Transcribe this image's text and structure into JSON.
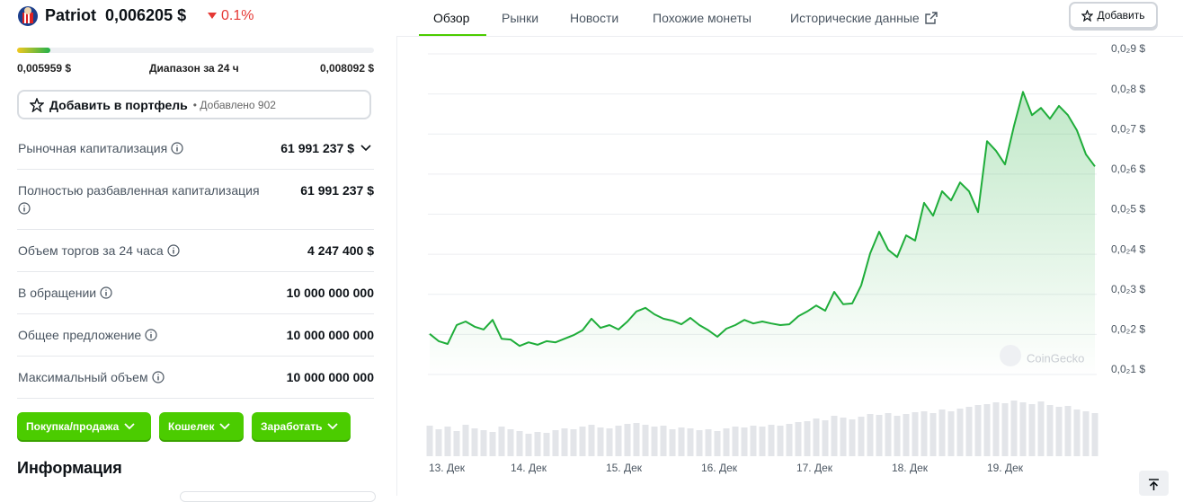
{
  "header": {
    "coin_name": "Patriot",
    "price": "0,006205 $",
    "change": "0.1%"
  },
  "range": {
    "low": "0,005959 $",
    "label": "Диапазон за 24 ч",
    "high": "0,008092 $"
  },
  "portfolio_button": {
    "label": "Добавить в портфель",
    "added": "• Добавлено 902"
  },
  "stats": [
    {
      "label": "Рыночная капитализация",
      "value": "61 991 237 $"
    },
    {
      "label": "Полностью разбавленная капитализация",
      "value": "61 991 237 $"
    },
    {
      "label": "Объем торгов за 24 часа",
      "value": "4 247 400 $"
    },
    {
      "label": "В обращении",
      "value": "10 000 000 000"
    },
    {
      "label": "Общее предложение",
      "value": "10 000 000 000"
    },
    {
      "label": "Максимальный объем",
      "value": "10 000 000 000"
    }
  ],
  "action_buttons": [
    "Покупка/продажа",
    "Кошелек",
    "Заработать"
  ],
  "section_title": "Информация",
  "tabs": [
    "Обзор",
    "Рынки",
    "Новости",
    "Похожие монеты",
    "Исторические данные"
  ],
  "add_button": "Добавить",
  "chart": {
    "type": "line",
    "color": "#1fad3a",
    "watermark": "CoinGecko",
    "values": [
      0.0019,
      0.00172,
      0.00165,
      0.00212,
      0.00221,
      0.00208,
      0.00201,
      0.00225,
      0.00178,
      0.00176,
      0.0016,
      0.00169,
      0.00163,
      0.00172,
      0.00169,
      0.00178,
      0.00187,
      0.00199,
      0.00228,
      0.00205,
      0.00212,
      0.00201,
      0.00221,
      0.00246,
      0.00255,
      0.00239,
      0.00228,
      0.00223,
      0.00214,
      0.0023,
      0.00212,
      0.00199,
      0.00183,
      0.00203,
      0.00212,
      0.00225,
      0.00216,
      0.00221,
      0.00216,
      0.00212,
      0.00214,
      0.00234,
      0.00246,
      0.00261,
      0.00248,
      0.00295,
      0.00264,
      0.00266,
      0.00311,
      0.00391,
      0.00445,
      0.004,
      0.00382,
      0.00436,
      0.00423,
      0.00517,
      0.00485,
      0.00546,
      0.00523,
      0.00568,
      0.00546,
      0.00494,
      0.00671,
      0.00647,
      0.00613,
      0.00709,
      0.00794,
      0.00736,
      0.00754,
      0.00727,
      0.00759,
      0.00736,
      0.00698,
      0.00638,
      0.00608
    ],
    "volume": [
      34,
      30,
      33,
      28,
      35,
      31,
      29,
      27,
      33,
      30,
      28,
      25,
      27,
      26,
      29,
      31,
      30,
      33,
      35,
      32,
      31,
      34,
      36,
      37,
      35,
      33,
      34,
      30,
      32,
      31,
      29,
      30,
      28,
      31,
      33,
      32,
      34,
      33,
      35,
      34,
      36,
      38,
      39,
      42,
      40,
      45,
      43,
      41,
      44,
      47,
      46,
      48,
      45,
      47,
      49,
      50,
      48,
      52,
      50,
      53,
      55,
      57,
      58,
      60,
      59,
      62,
      60,
      58,
      61,
      57,
      55,
      56,
      52,
      50,
      48
    ],
    "xlim": [
      0,
      74
    ],
    "xticks": [
      {
        "value": 1.9,
        "label": "13. Дек"
      },
      {
        "value": 11,
        "label": "14. Дек"
      },
      {
        "value": 21.6,
        "label": "15. Дек"
      },
      {
        "value": 32.2,
        "label": "16. Дек"
      },
      {
        "value": 42.8,
        "label": "17. Дек"
      },
      {
        "value": 53.4,
        "label": "18. Дек"
      },
      {
        "value": 64,
        "label": "19. Дек"
      }
    ],
    "ylim": [
      0.001,
      0.009
    ],
    "yticks": [
      {
        "value": 0.009,
        "label": "0,0₂9 $"
      },
      {
        "value": 0.008,
        "label": "0,0₂8 $"
      },
      {
        "value": 0.007,
        "label": "0,0₂7 $"
      },
      {
        "value": 0.006,
        "label": "0,0₂6 $"
      },
      {
        "value": 0.005,
        "label": "0,0₂5 $"
      },
      {
        "value": 0.004,
        "label": "0,0₂4 $"
      },
      {
        "value": 0.003,
        "label": "0,0₂3 $"
      },
      {
        "value": 0.002,
        "label": "0,0₂2 $"
      },
      {
        "value": 0.001,
        "label": "0,0₂1 $"
      }
    ],
    "grid": true
  }
}
